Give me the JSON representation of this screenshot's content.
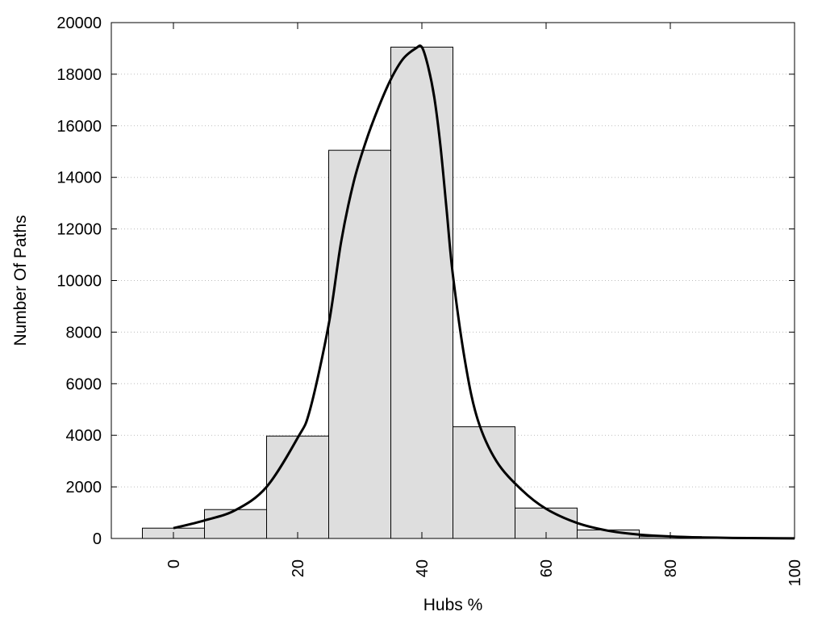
{
  "chart_data": {
    "type": "bar",
    "xlabel": "Hubs %",
    "ylabel": "Number Of Paths",
    "xlim": [
      -10,
      100
    ],
    "ylim": [
      0,
      20000
    ],
    "x_ticks": [
      0,
      20,
      40,
      60,
      80,
      100
    ],
    "y_ticks": [
      0,
      2000,
      4000,
      6000,
      8000,
      10000,
      12000,
      14000,
      16000,
      18000,
      20000
    ],
    "grid": "horizontal dotted",
    "bin_width": 10,
    "categories": [
      0,
      10,
      20,
      30,
      40,
      50,
      60,
      70,
      80,
      90
    ],
    "values": [
      400,
      1120,
      3970,
      15050,
      19050,
      4330,
      1180,
      330,
      70,
      30
    ],
    "curve": {
      "x": [
        0,
        5,
        10,
        15,
        20,
        22,
        25,
        27,
        29,
        31,
        33,
        35,
        37,
        39,
        40,
        41,
        42,
        43,
        44,
        45,
        47,
        49,
        52,
        56,
        60,
        65,
        70,
        75,
        80,
        85,
        90,
        95,
        100
      ],
      "y": [
        400,
        700,
        1100,
        2000,
        3900,
        5000,
        8300,
        11500,
        13800,
        15400,
        16700,
        17800,
        18600,
        19000,
        19050,
        18300,
        17100,
        15200,
        12700,
        10200,
        6800,
        4600,
        3000,
        1900,
        1150,
        600,
        300,
        150,
        80,
        40,
        20,
        10,
        5
      ]
    },
    "colors": {
      "bar_fill": "#dedede",
      "bar_stroke": "#000000",
      "curve": "#000000",
      "grid": "#bdbdbd"
    }
  }
}
